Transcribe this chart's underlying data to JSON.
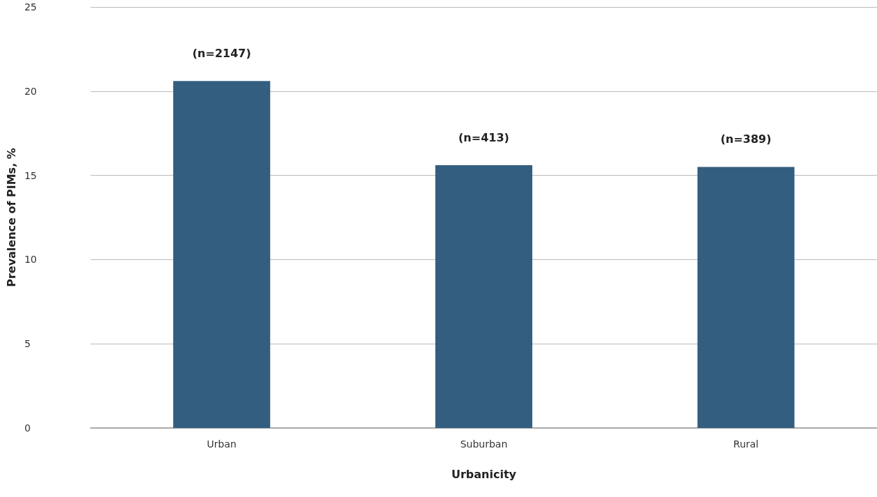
{
  "chart_data": {
    "type": "bar",
    "xlabel": "Urbanicity",
    "ylabel": "Prevalence of PIMs, %",
    "categories": [
      "Urban",
      "Suburban",
      "Rural"
    ],
    "values": [
      20.6,
      15.6,
      15.5
    ],
    "color": "#335e80",
    "ylim": [
      0,
      25
    ],
    "yticks": [
      0,
      5,
      10,
      15,
      20,
      25
    ],
    "grid": "y",
    "annotations": [
      {
        "text": "(n=2147)",
        "x": "Urban",
        "y": 20.6
      },
      {
        "text": "(n=413)",
        "x": "Suburban",
        "y": 15.6
      },
      {
        "text": "(n=389)",
        "x": "Rural",
        "y": 15.5
      }
    ]
  }
}
